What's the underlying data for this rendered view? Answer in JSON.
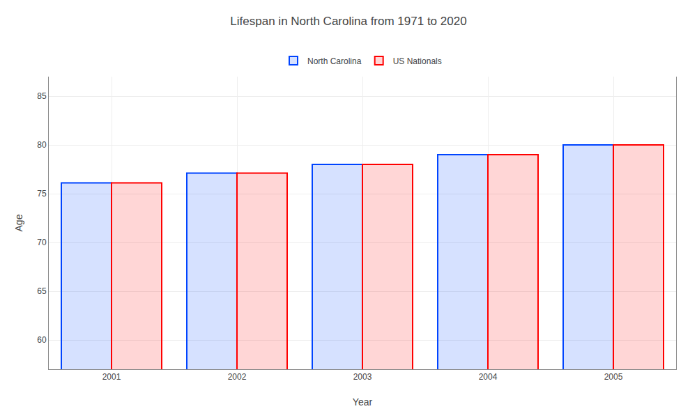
{
  "chart_data": {
    "type": "bar",
    "title": "Lifespan in North Carolina from 1971 to 2020",
    "x_label": "Year",
    "y_label": "Age",
    "categories": [
      "2001",
      "2002",
      "2003",
      "2004",
      "2005"
    ],
    "series": [
      {
        "name": "North Carolina",
        "color": "#0044ff",
        "values": [
          76.1,
          77.1,
          78.0,
          79.0,
          80.0
        ]
      },
      {
        "name": "US Nationals",
        "color": "#ff0000",
        "values": [
          76.1,
          77.1,
          78.0,
          79.0,
          80.0
        ]
      }
    ],
    "ylim": [
      57,
      87
    ],
    "yticks": [
      60,
      65,
      70,
      75,
      80,
      85
    ],
    "grid": true,
    "legend": "top"
  }
}
